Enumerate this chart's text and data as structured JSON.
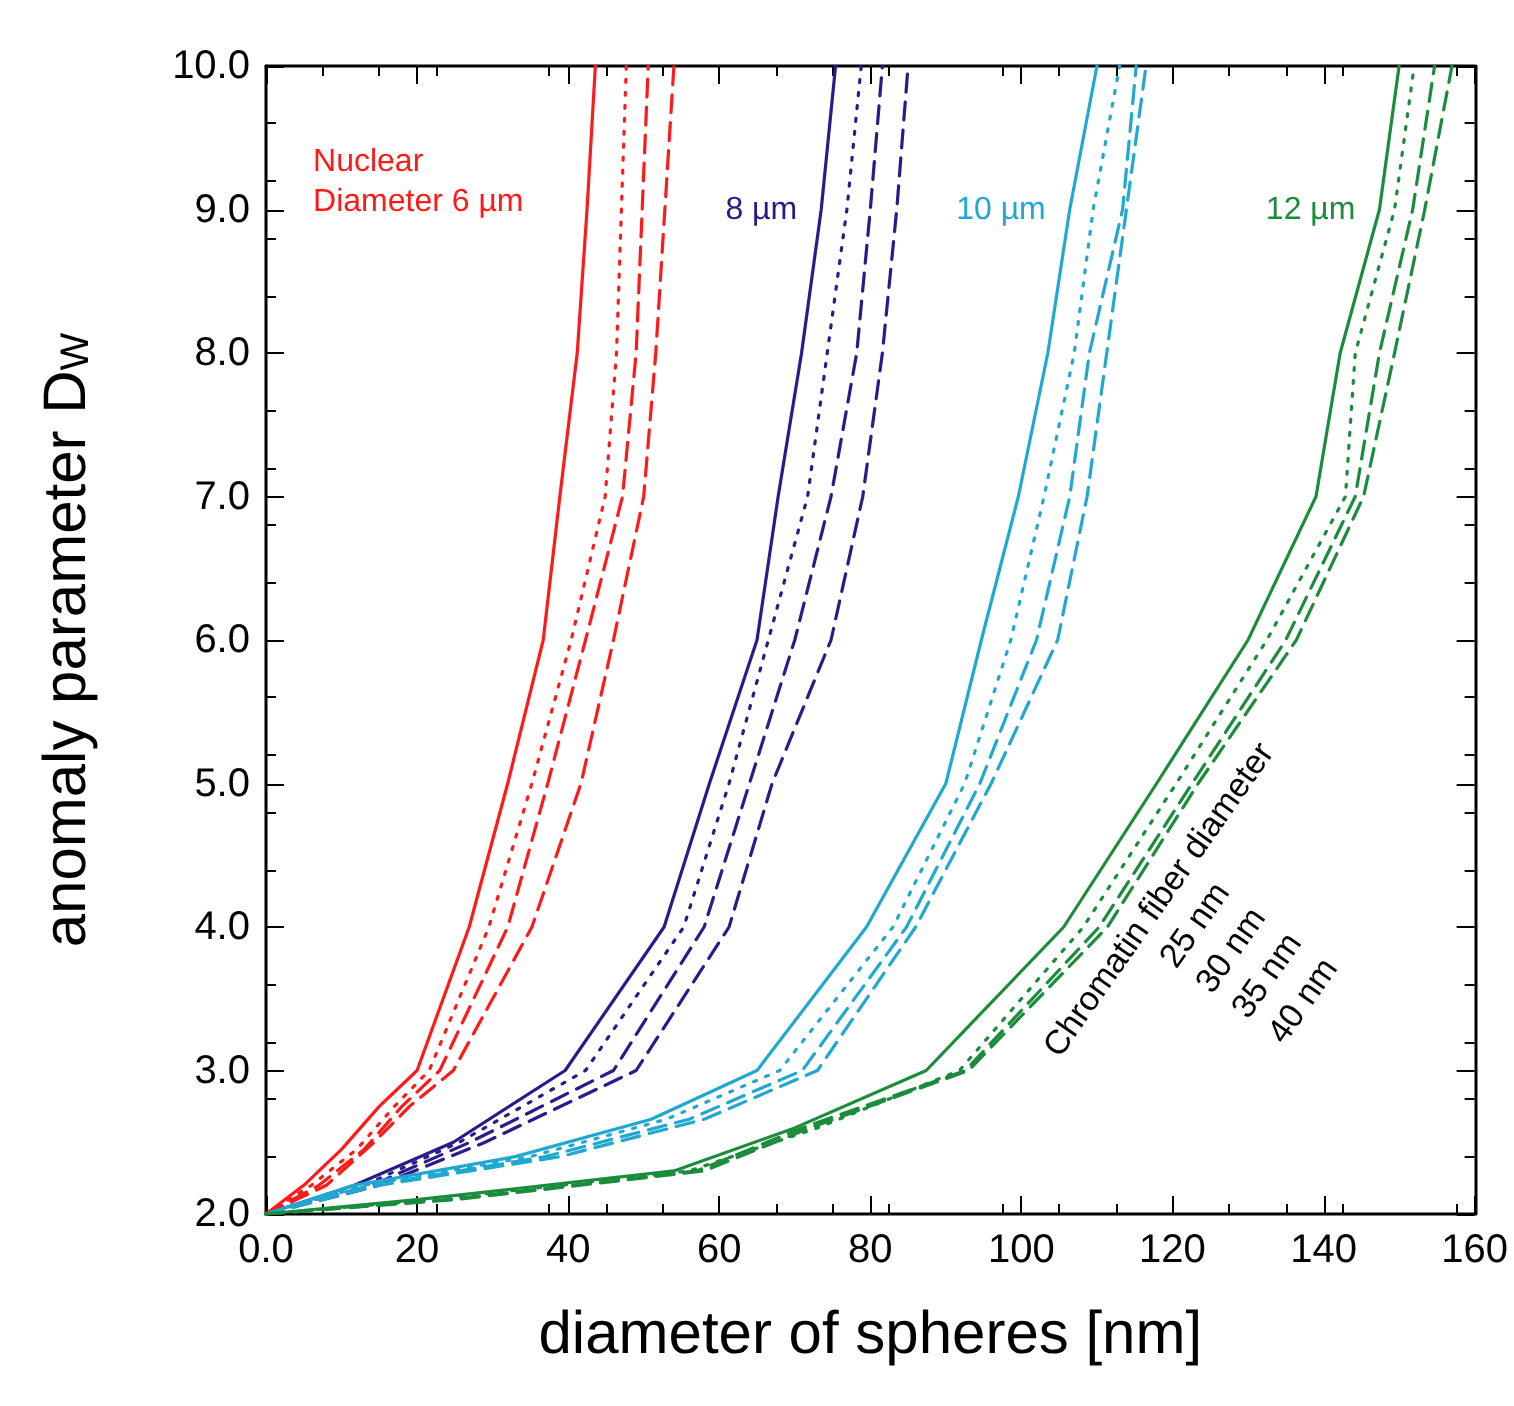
{
  "chart_data": {
    "type": "line",
    "xlabel": "diameter of spheres [nm]",
    "ylabel": "anomaly parameter D$_{W}$",
    "xlim": [
      0,
      160
    ],
    "ylim": [
      2,
      10
    ],
    "xticks": [
      {
        "value": 0,
        "label": "0.0"
      },
      20,
      40,
      60,
      80,
      100,
      120,
      140,
      160
    ],
    "yticks": [
      {
        "value": 2,
        "label": "2.0"
      },
      {
        "value": 3,
        "label": "3.0"
      },
      {
        "value": 4,
        "label": "4.0"
      },
      {
        "value": 5,
        "label": "5.0"
      },
      {
        "value": 6,
        "label": "6.0"
      },
      {
        "value": 7,
        "label": "7.0"
      },
      {
        "value": 8,
        "label": "8.0"
      },
      {
        "value": 9,
        "label": "9.0"
      },
      {
        "value": 10,
        "label": "10.0"
      }
    ],
    "grid": false,
    "marker": "none",
    "series": [
      {
        "color": "#ff1a1a",
        "line_style": "solid",
        "x": [
          0,
          5,
          10,
          15,
          20,
          26.9,
          32,
          36.7,
          38.9,
          41.2,
          42.5,
          43.6
        ],
        "values": [
          2,
          2.2,
          2.45,
          2.75,
          3,
          4,
          5,
          6,
          7,
          8,
          9,
          10
        ]
      },
      {
        "color": "#ff1a1a",
        "line_style": "dotted",
        "x": [
          0,
          6,
          12,
          17,
          21.6,
          29.5,
          35.2,
          40.4,
          44.9,
          46.4,
          47.7
        ],
        "values": [
          2,
          2.2,
          2.45,
          2.75,
          3,
          4,
          5,
          6,
          7,
          8,
          10
        ]
      },
      {
        "color": "#ff1a1a",
        "line_style": "dashed",
        "x": [
          0,
          7,
          13,
          18,
          23,
          32,
          37.3,
          42.3,
          47.2,
          49,
          50.6
        ],
        "values": [
          2,
          2.2,
          2.45,
          2.75,
          3,
          4,
          5,
          6,
          7,
          8,
          10
        ]
      },
      {
        "color": "#ff1a1a",
        "line_style": "dashed",
        "x": [
          0,
          8,
          14.3,
          19,
          24.8,
          35.2,
          41.7,
          46,
          50,
          51.6,
          54
        ],
        "values": [
          2,
          2.2,
          2.5,
          2.75,
          3,
          4,
          5,
          6,
          7,
          8,
          10
        ]
      },
      {
        "color": "#2a1a8a",
        "line_style": "solid",
        "x": [
          0,
          11.7,
          24.8,
          39.6,
          52.7,
          58.7,
          65,
          67.8,
          70.9,
          73.5,
          75.4
        ],
        "values": [
          2,
          2.2,
          2.5,
          3,
          4,
          5,
          6,
          7,
          8,
          9,
          10
        ]
      },
      {
        "color": "#2a1a8a",
        "line_style": "dotted",
        "x": [
          0,
          13,
          25.6,
          42.3,
          55.3,
          61.3,
          66.5,
          71.7,
          74.3,
          76.9,
          78.8
        ],
        "values": [
          2,
          2.2,
          2.5,
          3,
          4,
          5,
          6,
          7,
          8,
          9,
          10
        ]
      },
      {
        "color": "#2a1a8a",
        "line_style": "dashed",
        "x": [
          0,
          14,
          27,
          46,
          58,
          64,
          70,
          74.8,
          78.2,
          80,
          81.6
        ],
        "values": [
          2,
          2.2,
          2.5,
          3,
          4,
          5,
          6,
          7,
          8,
          9,
          10
        ]
      },
      {
        "color": "#2a1a8a",
        "line_style": "dashed",
        "x": [
          0,
          15,
          29,
          49,
          61.3,
          67,
          74.8,
          79,
          81.6,
          83.5,
          85
        ],
        "values": [
          2,
          2.2,
          2.5,
          3,
          4,
          5,
          6,
          7,
          8,
          9,
          10
        ]
      },
      {
        "color": "#20a8d0",
        "line_style": "solid",
        "x": [
          0,
          11.7,
          33,
          51,
          65,
          79.5,
          90,
          94.7,
          99.6,
          103.5,
          106.4,
          110
        ],
        "values": [
          2,
          2.2,
          2.4,
          2.66,
          3,
          4,
          5,
          6,
          7,
          8,
          9,
          10
        ]
      },
      {
        "color": "#20a8d0",
        "line_style": "dotted",
        "x": [
          0,
          13,
          35,
          53,
          68,
          83,
          92.5,
          98.6,
          103,
          107,
          109.5,
          113
        ],
        "values": [
          2,
          2.2,
          2.4,
          2.66,
          3,
          4,
          5,
          6,
          7,
          8,
          9,
          10
        ]
      },
      {
        "color": "#20a8d0",
        "line_style": "dashed",
        "x": [
          0,
          14,
          37,
          56,
          71,
          84.8,
          94.5,
          102,
          106.4,
          109,
          113.4,
          115.2
        ],
        "values": [
          2,
          2.2,
          2.4,
          2.66,
          3,
          4,
          5,
          6,
          7,
          8,
          9,
          10
        ]
      },
      {
        "color": "#20a8d0",
        "line_style": "dashed",
        "x": [
          0,
          15,
          39,
          58,
          73,
          86,
          96,
          104.8,
          108.7,
          111.3,
          113.9,
          116.5
        ],
        "values": [
          2,
          2.2,
          2.4,
          2.66,
          3,
          4,
          5,
          6,
          7,
          8,
          9,
          10
        ]
      },
      {
        "color": "#1a8c3c",
        "line_style": "solid",
        "x": [
          0,
          20,
          54,
          70,
          87.4,
          105.6,
          117.9,
          130,
          139,
          142.2,
          147.4,
          150
        ],
        "values": [
          2,
          2.1,
          2.3,
          2.6,
          3,
          4,
          5,
          6,
          7,
          8,
          9,
          10
        ]
      },
      {
        "color": "#1a8c3c",
        "line_style": "dotted",
        "x": [
          0,
          22,
          56,
          73,
          91.8,
          108.2,
          120.5,
          132.5,
          142.9,
          144.2,
          149.4,
          152
        ],
        "values": [
          2,
          2.1,
          2.3,
          2.6,
          3,
          4,
          5,
          6,
          7,
          8,
          9,
          10
        ]
      },
      {
        "color": "#1a8c3c",
        "line_style": "dashed",
        "x": [
          0,
          24,
          57,
          71,
          92.6,
          110.3,
          122.6,
          135,
          144.2,
          147.4,
          151.8,
          154.7
        ],
        "values": [
          2,
          2.1,
          2.3,
          2.6,
          3,
          4,
          5,
          6,
          7,
          8,
          9,
          10
        ]
      },
      {
        "color": "#1a8c3c",
        "line_style": "dashed",
        "x": [
          0,
          25,
          58,
          72,
          93,
          111.4,
          123.4,
          136.4,
          145.3,
          149.4,
          153.4,
          157
        ],
        "values": [
          2,
          2.1,
          2.3,
          2.6,
          3,
          4,
          5,
          6,
          7,
          8,
          9,
          10
        ]
      }
    ],
    "annotations": [
      "Nuclear\nDiameter 6 µm",
      "8 µm",
      "10 µm",
      "12 µm",
      "Chromatin fiber diameter\n25 nm\n30 nm\n35 nm\n40 nm"
    ]
  }
}
